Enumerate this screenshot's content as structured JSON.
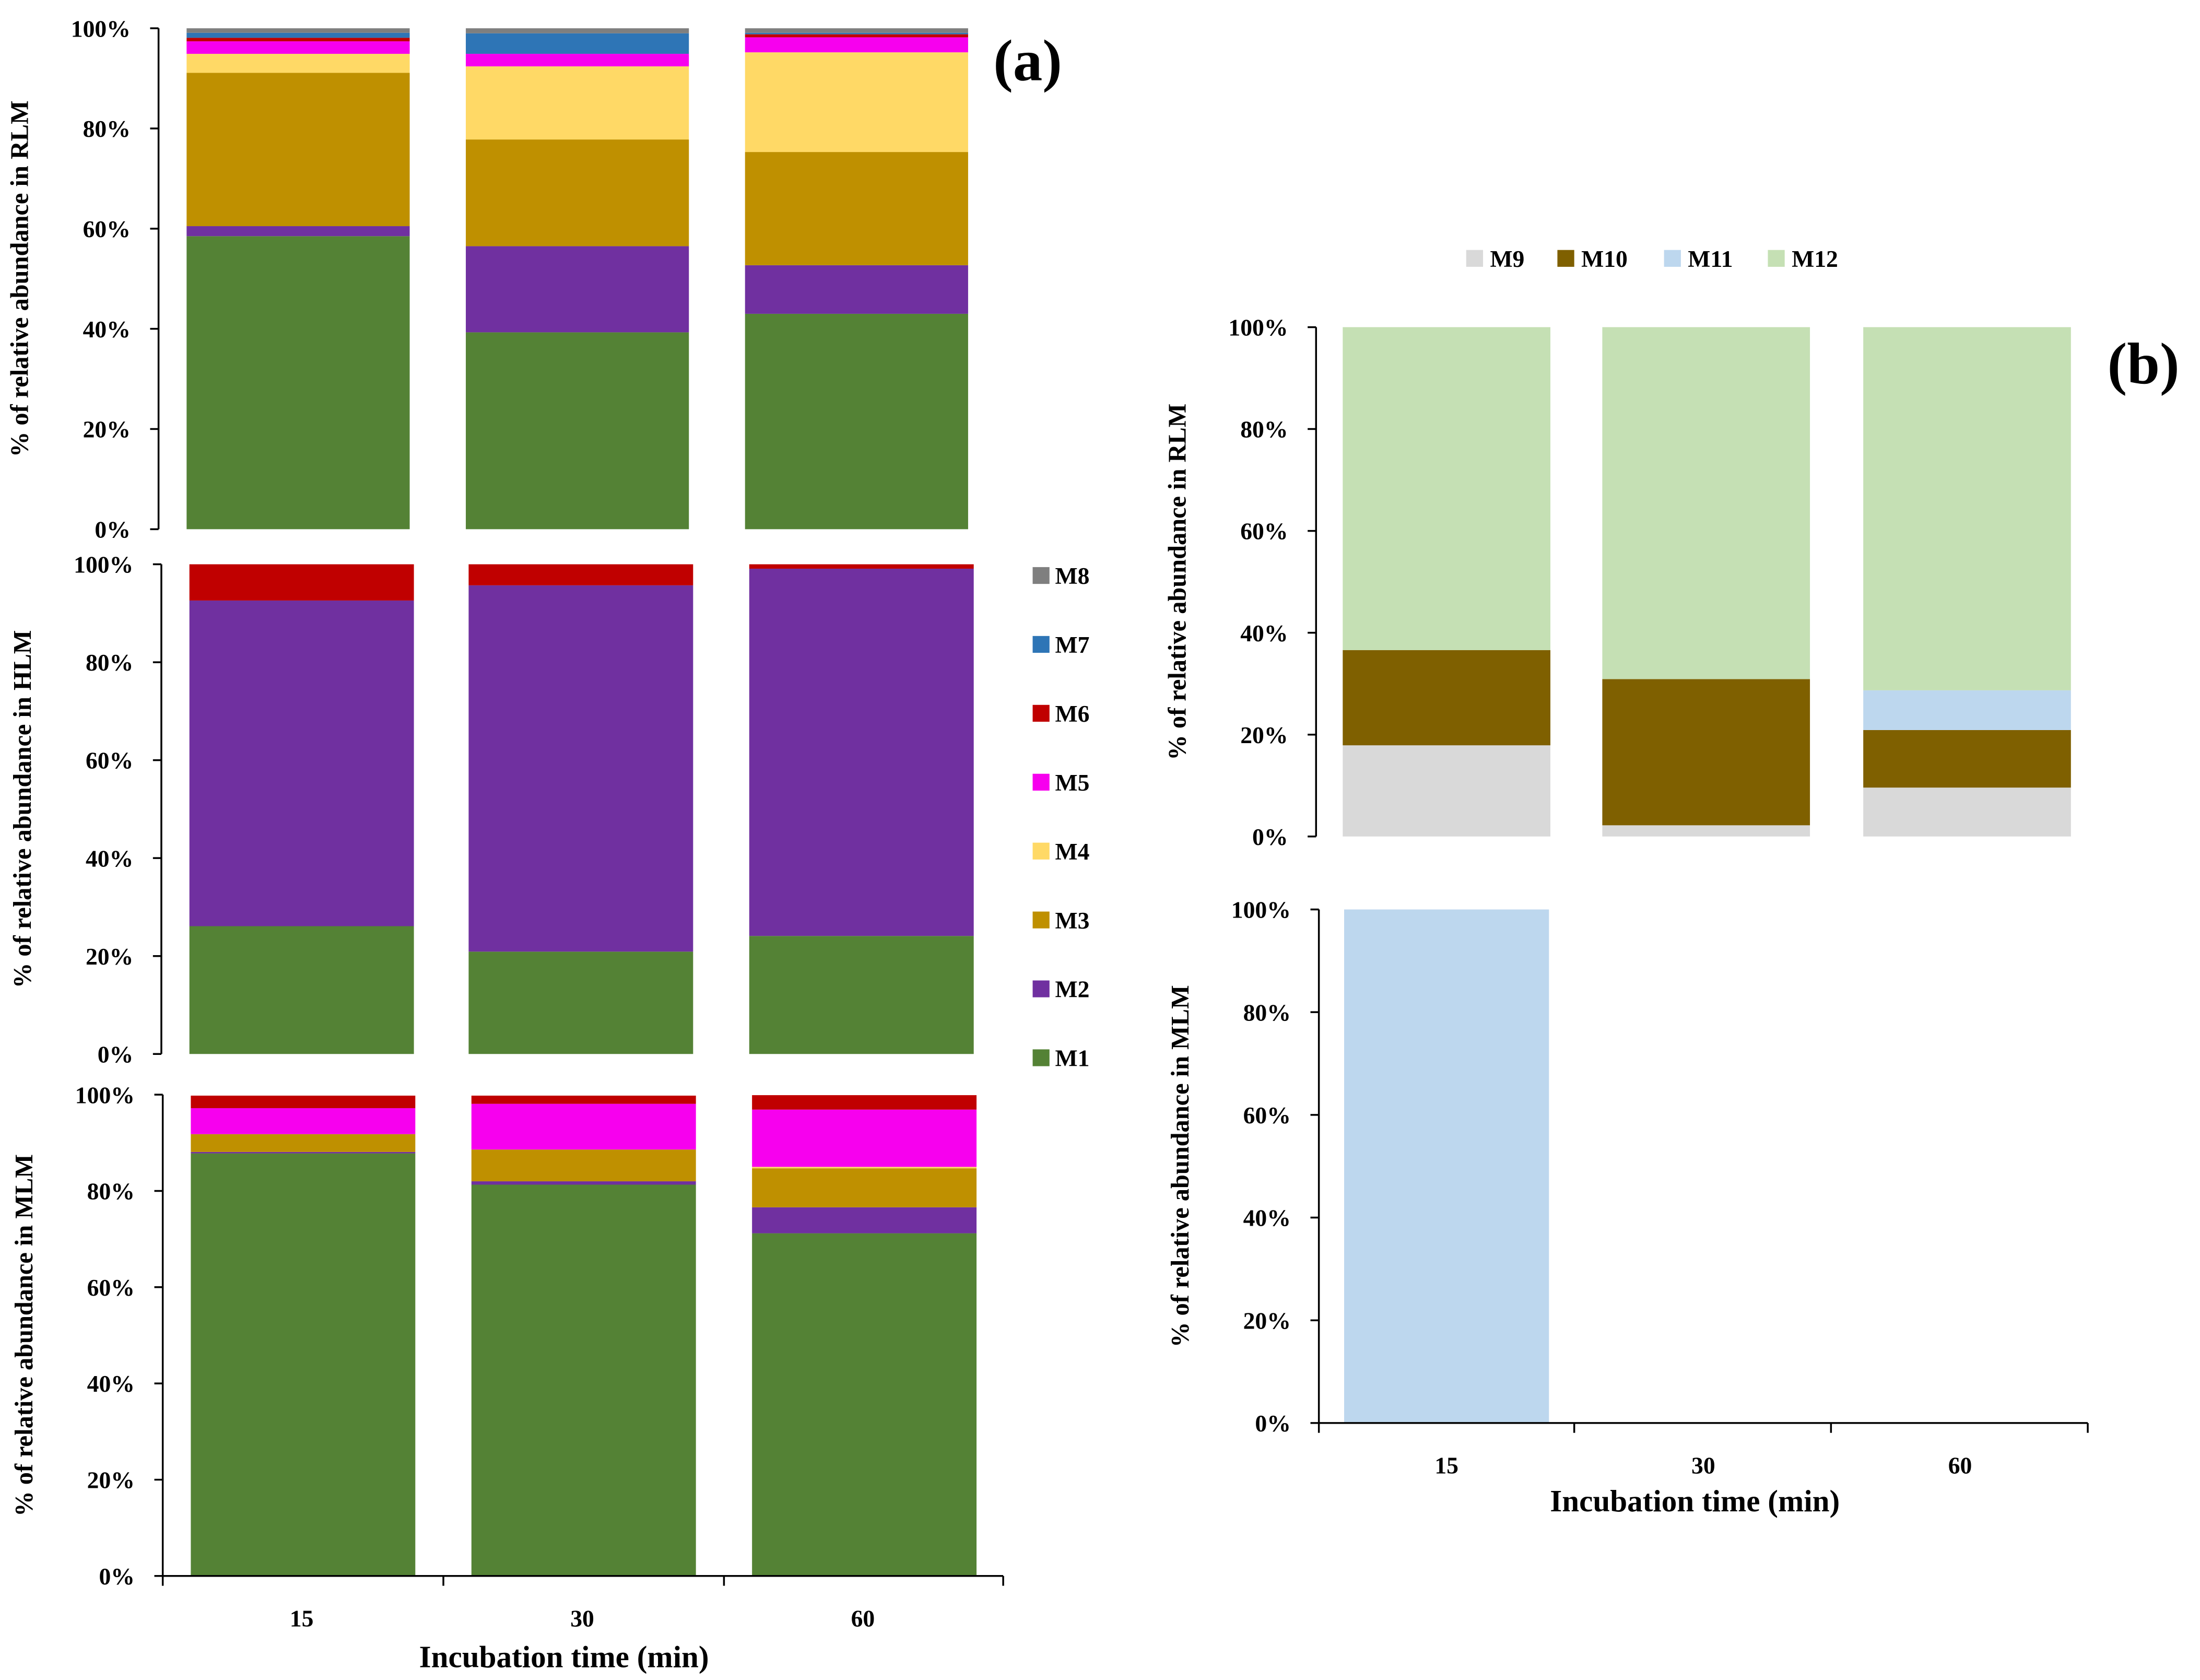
{
  "panel_labels": {
    "a": "(a)",
    "b": "(b)"
  },
  "x_axis_title": "Incubation time (min)",
  "colors": {
    "M1": "#548235",
    "M2": "#7030A0",
    "M3": "#BF9000",
    "M4": "#FFD966",
    "M5": "#F700EE",
    "M6": "#C00000",
    "M7": "#2E75B6",
    "M8": "#7F7F7F",
    "M9": "#D9D9D9",
    "M10": "#7F6000",
    "M11": "#BDD7EE",
    "M12": "#C5E0B4"
  },
  "legend_a": [
    "M8",
    "M7",
    "M6",
    "M5",
    "M4",
    "M3",
    "M2",
    "M1"
  ],
  "legend_b": [
    "M9",
    "M10",
    "M11",
    "M12"
  ],
  "chart_data": [
    {
      "id": "a_rlm",
      "panel": "(a)",
      "type": "bar",
      "stacked": true,
      "ylabel": "% of relative abundance in RLM",
      "categories": [
        "15",
        "30",
        "60"
      ],
      "ylim": [
        0,
        100
      ],
      "yticks": [
        "0%",
        "20%",
        "40%",
        "60%",
        "80%",
        "100%"
      ],
      "series": [
        {
          "name": "M1",
          "values": [
            58.5,
            39.3,
            43.0
          ]
        },
        {
          "name": "M2",
          "values": [
            2.0,
            17.2,
            9.7
          ]
        },
        {
          "name": "M3",
          "values": [
            30.6,
            21.3,
            22.6
          ]
        },
        {
          "name": "M4",
          "values": [
            3.8,
            14.6,
            19.9
          ]
        },
        {
          "name": "M5",
          "values": [
            2.5,
            2.5,
            3.0
          ]
        },
        {
          "name": "M6",
          "values": [
            0.7,
            0.0,
            0.6
          ]
        },
        {
          "name": "M7",
          "values": [
            1.0,
            4.1,
            0.3
          ]
        },
        {
          "name": "M8",
          "values": [
            0.9,
            1.0,
            0.9
          ]
        }
      ]
    },
    {
      "id": "a_hlm",
      "panel": "(a)",
      "type": "bar",
      "stacked": true,
      "ylabel": "% of relative abundance in HLM",
      "categories": [
        "15",
        "30",
        "60"
      ],
      "ylim": [
        0,
        100
      ],
      "yticks": [
        "0%",
        "20%",
        "40%",
        "60%",
        "80%",
        "100%"
      ],
      "series": [
        {
          "name": "M1",
          "values": [
            26.1,
            20.9,
            24.1
          ]
        },
        {
          "name": "M2",
          "values": [
            66.5,
            74.8,
            75.0
          ]
        },
        {
          "name": "M6",
          "values": [
            7.4,
            4.3,
            0.9
          ]
        }
      ]
    },
    {
      "id": "a_mlm",
      "panel": "(a)",
      "type": "bar",
      "stacked": true,
      "ylabel": "% of relative abundance in MLM",
      "categories": [
        "15",
        "30",
        "60"
      ],
      "ylim": [
        0,
        100
      ],
      "yticks": [
        "0%",
        "20%",
        "40%",
        "60%",
        "80%",
        "100%"
      ],
      "series": [
        {
          "name": "M1",
          "values": [
            87.8,
            81.3,
            71.2
          ]
        },
        {
          "name": "M2",
          "values": [
            0.3,
            0.7,
            5.4
          ]
        },
        {
          "name": "M3",
          "values": [
            3.7,
            6.6,
            8.1
          ]
        },
        {
          "name": "M4",
          "values": [
            0.0,
            0.0,
            0.3
          ]
        },
        {
          "name": "M5",
          "values": [
            5.4,
            9.5,
            11.9
          ]
        },
        {
          "name": "M6",
          "values": [
            2.6,
            1.7,
            3.0
          ]
        }
      ]
    },
    {
      "id": "b_rlm",
      "panel": "(b)",
      "type": "bar",
      "stacked": true,
      "ylabel": "% of relative abundance in RLM",
      "categories": [
        "15",
        "30",
        "60"
      ],
      "ylim": [
        0,
        100
      ],
      "yticks": [
        "0%",
        "20%",
        "40%",
        "60%",
        "80%",
        "100%"
      ],
      "series": [
        {
          "name": "M9",
          "values": [
            17.9,
            2.2,
            9.6
          ]
        },
        {
          "name": "M10",
          "values": [
            18.7,
            28.7,
            11.3
          ]
        },
        {
          "name": "M11",
          "values": [
            0.0,
            0.0,
            7.8
          ]
        },
        {
          "name": "M12",
          "values": [
            63.4,
            69.1,
            71.3
          ]
        }
      ]
    },
    {
      "id": "b_mlm",
      "panel": "(b)",
      "type": "bar",
      "stacked": true,
      "ylabel": "% of relative abundance in MLM",
      "categories": [
        "15",
        "30",
        "60"
      ],
      "ylim": [
        0,
        100
      ],
      "yticks": [
        "0%",
        "20%",
        "40%",
        "60%",
        "80%",
        "100%"
      ],
      "series": [
        {
          "name": "M11",
          "values": [
            100,
            0,
            0
          ]
        }
      ]
    }
  ]
}
